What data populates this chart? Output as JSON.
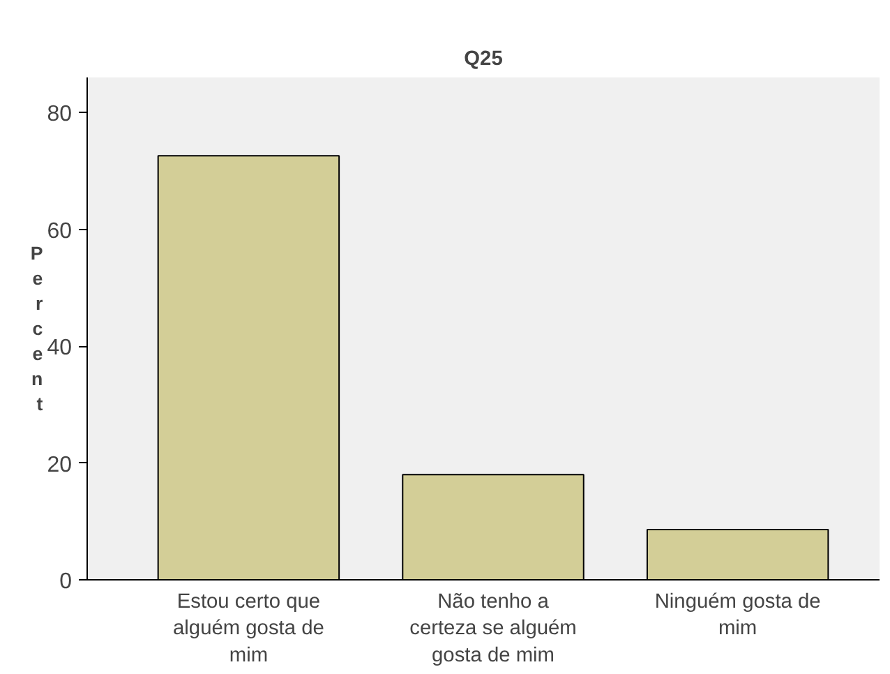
{
  "chart_data": {
    "type": "bar",
    "title": "Q25",
    "ylabel": "Percent",
    "categories": [
      "Estou certo que alguém gosta de mim",
      "Não tenho a certeza se alguém gosta de mim",
      "Ninguém gosta de mim"
    ],
    "values": [
      72.6,
      18.0,
      8.6
    ],
    "color": "#d3ce97",
    "ylim": [
      0,
      86
    ],
    "yticks": [
      0,
      20,
      40,
      60,
      80
    ],
    "grid": false
  }
}
